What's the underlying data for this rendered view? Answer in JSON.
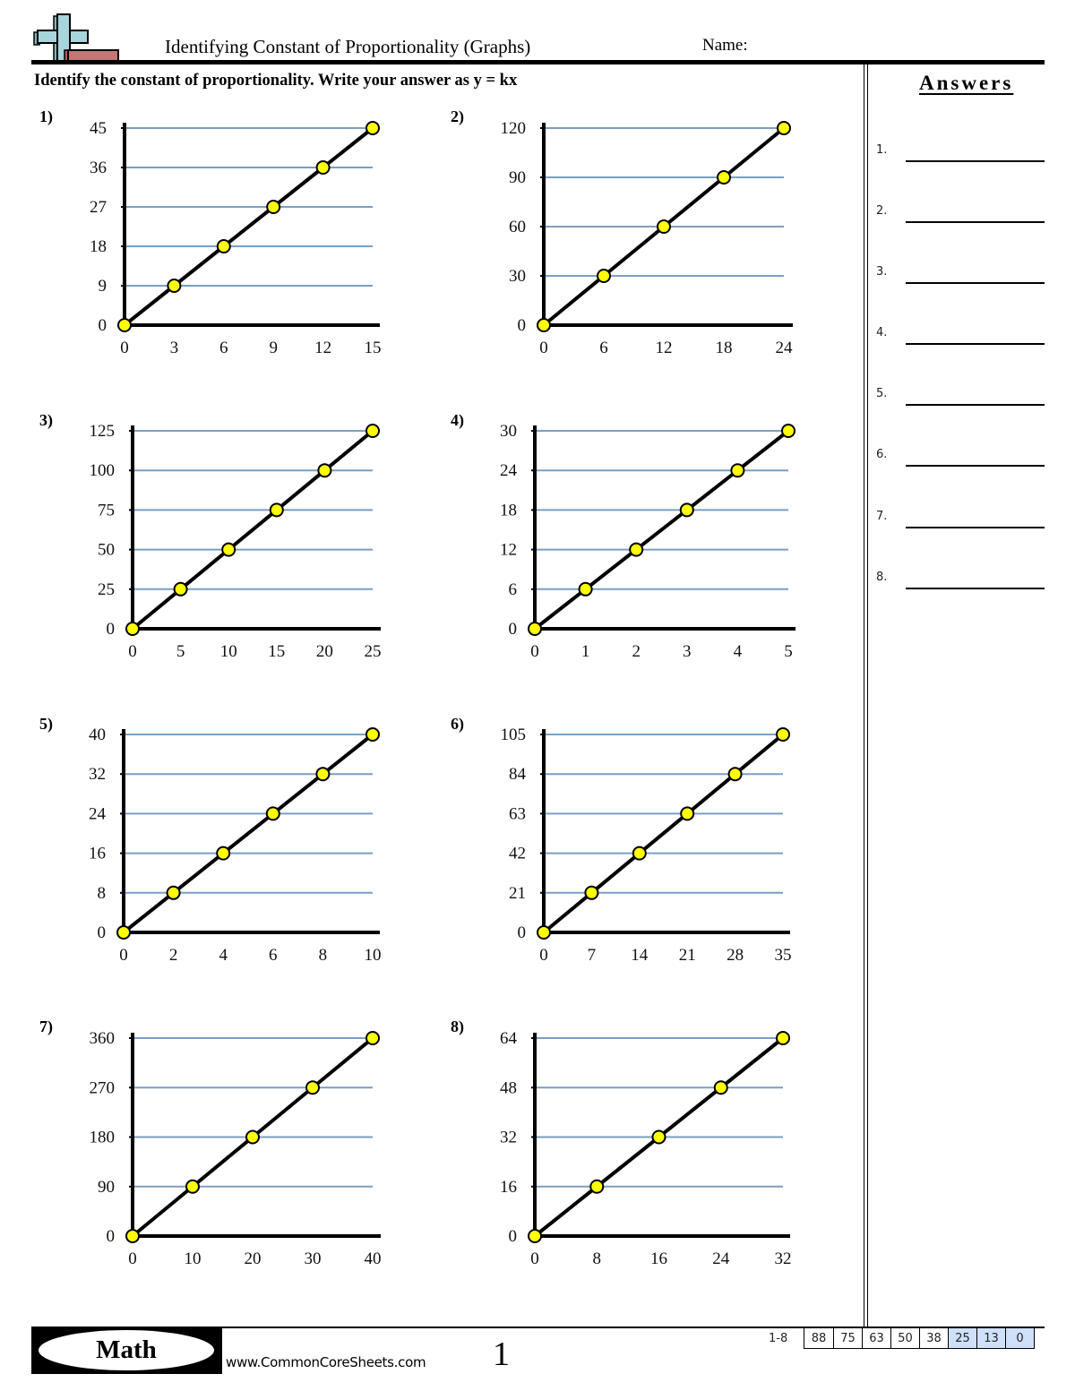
{
  "header": {
    "title": "Identifying Constant of Proportionality (Graphs)",
    "name_label": "Name:",
    "instructions": "Identify the constant of proportionality. Write your answer as y = kx",
    "logo_icon": "math-plus-minus-logo-icon"
  },
  "answers": {
    "title": "Answers",
    "items": [
      {
        "label": "1.",
        "value": ""
      },
      {
        "label": "2.",
        "value": ""
      },
      {
        "label": "3.",
        "value": ""
      },
      {
        "label": "4.",
        "value": ""
      },
      {
        "label": "5.",
        "value": ""
      },
      {
        "label": "6.",
        "value": ""
      },
      {
        "label": "7.",
        "value": ""
      },
      {
        "label": "8.",
        "value": ""
      }
    ]
  },
  "footer": {
    "subject": "Math",
    "website": "www.CommonCoreSheets.com",
    "page_number": "1",
    "score_label": "1-8",
    "scores": [
      "88",
      "75",
      "63",
      "50",
      "38",
      "25",
      "13",
      "0"
    ]
  },
  "colors": {
    "gridline": "#7a9fc0",
    "point_fill": "#ffff00",
    "axis": "#000000",
    "logo_plus": "#a8d4dc",
    "logo_minus": "#c87474",
    "score_shade": "#cfe0fb"
  },
  "chart_data": [
    {
      "type": "line",
      "title": "1)",
      "x": [
        0,
        3,
        6,
        9,
        12,
        15
      ],
      "y": [
        0,
        9,
        18,
        27,
        36,
        45
      ],
      "x_ticks": [
        "0",
        "3",
        "6",
        "9",
        "12",
        "15"
      ],
      "y_ticks": [
        "0",
        "9",
        "18",
        "27",
        "36",
        "45"
      ],
      "xlim": [
        0,
        15
      ],
      "ylim": [
        0,
        45
      ],
      "grid": "horizontal"
    },
    {
      "type": "line",
      "title": "2)",
      "x": [
        0,
        6,
        12,
        18,
        24
      ],
      "y": [
        0,
        30,
        60,
        90,
        120
      ],
      "x_ticks": [
        "0",
        "6",
        "12",
        "18",
        "24"
      ],
      "y_ticks": [
        "0",
        "30",
        "60",
        "90",
        "120"
      ],
      "xlim": [
        0,
        24
      ],
      "ylim": [
        0,
        120
      ],
      "grid": "horizontal"
    },
    {
      "type": "line",
      "title": "3)",
      "x": [
        0,
        5,
        10,
        15,
        20,
        25
      ],
      "y": [
        0,
        25,
        50,
        75,
        100,
        125
      ],
      "x_ticks": [
        "0",
        "5",
        "10",
        "15",
        "20",
        "25"
      ],
      "y_ticks": [
        "0",
        "25",
        "50",
        "75",
        "100",
        "125"
      ],
      "xlim": [
        0,
        25
      ],
      "ylim": [
        0,
        125
      ],
      "grid": "horizontal"
    },
    {
      "type": "line",
      "title": "4)",
      "x": [
        0,
        1,
        2,
        3,
        4,
        5
      ],
      "y": [
        0,
        6,
        12,
        18,
        24,
        30
      ],
      "x_ticks": [
        "0",
        "1",
        "2",
        "3",
        "4",
        "5"
      ],
      "y_ticks": [
        "0",
        "6",
        "12",
        "18",
        "24",
        "30"
      ],
      "xlim": [
        0,
        5
      ],
      "ylim": [
        0,
        30
      ],
      "grid": "horizontal"
    },
    {
      "type": "line",
      "title": "5)",
      "x": [
        0,
        2,
        4,
        6,
        8,
        10
      ],
      "y": [
        0,
        8,
        16,
        24,
        32,
        40
      ],
      "x_ticks": [
        "0",
        "2",
        "4",
        "6",
        "8",
        "10"
      ],
      "y_ticks": [
        "0",
        "8",
        "16",
        "24",
        "32",
        "40"
      ],
      "xlim": [
        0,
        10
      ],
      "ylim": [
        0,
        40
      ],
      "grid": "horizontal"
    },
    {
      "type": "line",
      "title": "6)",
      "x": [
        0,
        7,
        14,
        21,
        28,
        35
      ],
      "y": [
        0,
        21,
        42,
        63,
        84,
        105
      ],
      "x_ticks": [
        "0",
        "7",
        "14",
        "21",
        "28",
        "35"
      ],
      "y_ticks": [
        "0",
        "21",
        "42",
        "63",
        "84",
        "105"
      ],
      "xlim": [
        0,
        35
      ],
      "ylim": [
        0,
        105
      ],
      "grid": "horizontal"
    },
    {
      "type": "line",
      "title": "7)",
      "x": [
        0,
        10,
        20,
        30,
        40
      ],
      "y": [
        0,
        90,
        180,
        270,
        360
      ],
      "x_ticks": [
        "0",
        "10",
        "20",
        "30",
        "40"
      ],
      "y_ticks": [
        "0",
        "90",
        "180",
        "270",
        "360"
      ],
      "xlim": [
        0,
        40
      ],
      "ylim": [
        0,
        360
      ],
      "grid": "horizontal"
    },
    {
      "type": "line",
      "title": "8)",
      "x": [
        0,
        8,
        16,
        24,
        32
      ],
      "y": [
        0,
        16,
        32,
        48,
        64
      ],
      "x_ticks": [
        "0",
        "8",
        "16",
        "24",
        "32"
      ],
      "y_ticks": [
        "0",
        "16",
        "32",
        "48",
        "64"
      ],
      "xlim": [
        0,
        32
      ],
      "ylim": [
        0,
        64
      ],
      "grid": "horizontal"
    }
  ]
}
